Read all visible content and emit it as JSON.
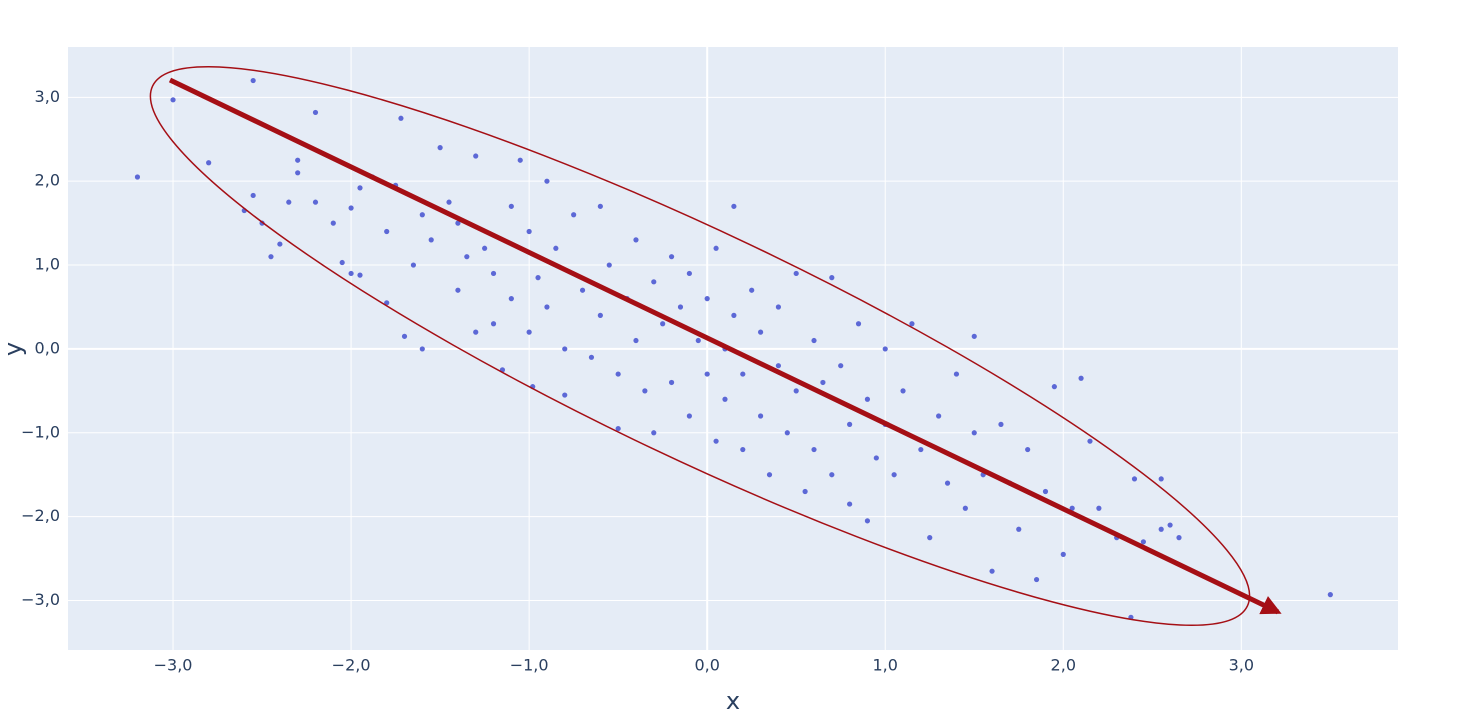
{
  "chart_data": {
    "type": "scatter",
    "x_label": "x",
    "y_label": "y",
    "xlim": [
      -3.59,
      3.88
    ],
    "ylim": [
      -3.59,
      3.6
    ],
    "xticks": [
      {
        "value": -3,
        "label": "−3,0"
      },
      {
        "value": -2,
        "label": "−2,0"
      },
      {
        "value": -1,
        "label": "−1,0"
      },
      {
        "value": 0,
        "label": "0,0"
      },
      {
        "value": 1,
        "label": "1,0"
      },
      {
        "value": 2,
        "label": "2,0"
      },
      {
        "value": 3,
        "label": "3,0"
      }
    ],
    "yticks": [
      {
        "value": -3,
        "label": "−3,0"
      },
      {
        "value": -2,
        "label": "−2,0"
      },
      {
        "value": -1,
        "label": "−1,0"
      },
      {
        "value": 0,
        "label": "0,0"
      },
      {
        "value": 1,
        "label": "1,0"
      },
      {
        "value": 2,
        "label": "2,0"
      },
      {
        "value": 3,
        "label": "3,0"
      }
    ],
    "grid": true,
    "background": "#e5ecf6",
    "series": [
      {
        "color": "#5c68d6",
        "x": [
          -3.2,
          -3.0,
          -2.8,
          -2.55,
          -2.6,
          -2.55,
          -2.5,
          -2.4,
          -2.45,
          -2.3,
          -2.3,
          -2.2,
          -2.35,
          -2.2,
          -2.1,
          -2.05,
          -2.0,
          -1.95,
          -2.0,
          -1.95,
          -1.88,
          -1.8,
          -1.8,
          -1.75,
          -1.72,
          -1.7,
          -1.65,
          -1.6,
          -1.6,
          -1.55,
          -1.5,
          -1.45,
          -1.4,
          -1.4,
          -1.35,
          -1.3,
          -1.3,
          -1.25,
          -1.2,
          -1.2,
          -1.15,
          -1.1,
          -1.1,
          -1.05,
          -1.0,
          -1.0,
          -0.98,
          -0.95,
          -0.9,
          -0.9,
          -0.85,
          -0.8,
          -0.8,
          -0.75,
          -0.7,
          -0.65,
          -0.6,
          -0.6,
          -0.55,
          -0.5,
          -0.5,
          -0.45,
          -0.4,
          -0.4,
          -0.35,
          -0.3,
          -0.3,
          -0.25,
          -0.2,
          -0.2,
          -0.15,
          -0.1,
          -0.1,
          -0.05,
          0.0,
          0.0,
          0.05,
          0.05,
          0.1,
          0.1,
          0.15,
          0.15,
          0.2,
          0.2,
          0.25,
          0.3,
          0.3,
          0.35,
          0.4,
          0.4,
          0.45,
          0.5,
          0.5,
          0.55,
          0.6,
          0.6,
          0.65,
          0.7,
          0.7,
          0.75,
          0.8,
          0.8,
          0.85,
          0.9,
          0.9,
          0.95,
          1.0,
          1.0,
          1.05,
          1.1,
          1.15,
          1.2,
          1.25,
          1.3,
          1.35,
          1.4,
          1.45,
          1.5,
          1.5,
          1.55,
          1.6,
          1.65,
          1.7,
          1.75,
          1.8,
          1.85,
          1.9,
          1.95,
          2.0,
          2.05,
          2.1,
          2.15,
          2.2,
          2.3,
          2.38,
          2.4,
          2.45,
          2.55,
          2.55,
          2.6,
          2.65,
          3.5
        ],
        "y": [
          2.05,
          2.97,
          2.22,
          3.2,
          1.65,
          1.83,
          1.5,
          1.25,
          1.1,
          2.25,
          2.1,
          2.82,
          1.75,
          1.75,
          1.5,
          1.03,
          0.9,
          0.88,
          1.68,
          1.92,
          2.05,
          1.4,
          0.55,
          1.95,
          2.75,
          0.15,
          1.0,
          0.0,
          1.6,
          1.3,
          2.4,
          1.75,
          1.5,
          0.7,
          1.1,
          0.2,
          2.3,
          1.2,
          0.9,
          0.3,
          -0.25,
          1.7,
          0.6,
          2.25,
          1.4,
          0.2,
          -0.45,
          0.85,
          2.0,
          0.5,
          1.2,
          0.0,
          -0.55,
          1.6,
          0.7,
          -0.1,
          1.7,
          0.4,
          1.0,
          -0.3,
          -0.95,
          0.6,
          1.3,
          0.1,
          -0.5,
          0.8,
          -1.0,
          0.3,
          1.1,
          -0.4,
          0.5,
          -0.8,
          0.9,
          0.1,
          -0.3,
          0.6,
          -1.1,
          1.2,
          0.0,
          -0.6,
          1.7,
          0.4,
          -0.3,
          -1.2,
          0.7,
          -0.8,
          0.2,
          -1.5,
          0.5,
          -0.2,
          -1.0,
          0.9,
          -0.5,
          -1.7,
          0.1,
          -1.2,
          -0.4,
          0.85,
          -1.5,
          -0.2,
          -0.9,
          -1.85,
          0.3,
          -0.6,
          -2.05,
          -1.3,
          0.0,
          -0.9,
          -1.5,
          -0.5,
          0.3,
          -1.2,
          -2.25,
          -0.8,
          -1.6,
          -0.3,
          -1.9,
          -1.0,
          0.15,
          -1.5,
          -2.65,
          -0.9,
          -1.6,
          -2.15,
          -1.2,
          -2.75,
          -1.7,
          -0.45,
          -2.45,
          -1.9,
          -0.35,
          -1.1,
          -1.9,
          -2.25,
          -3.2,
          -1.55,
          -2.3,
          -1.55,
          -2.15,
          -2.1,
          -2.25,
          -2.93
        ]
      }
    ]
  }
}
